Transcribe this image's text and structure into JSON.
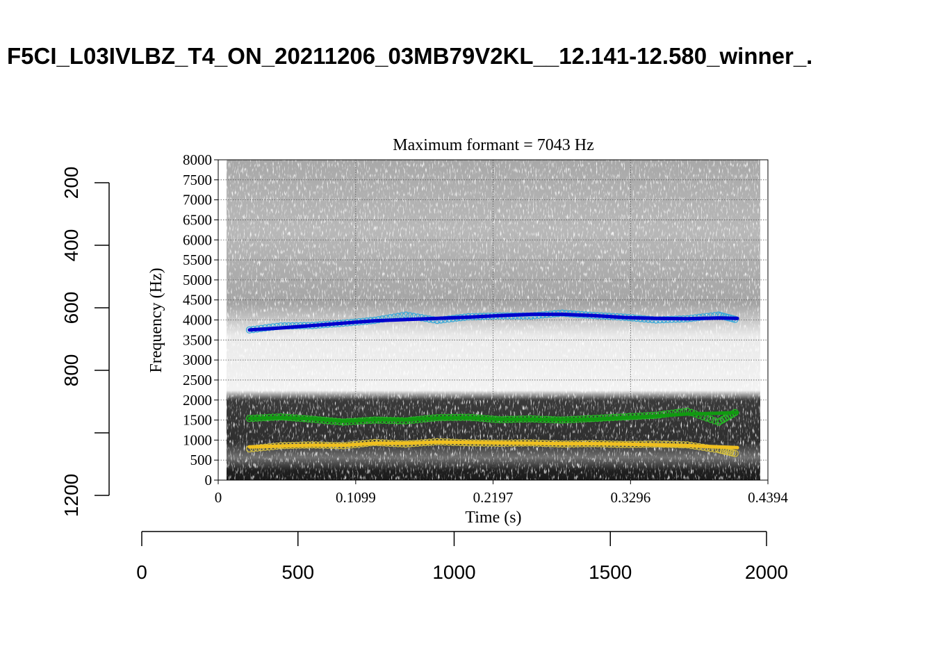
{
  "chart_data": {
    "type": "line",
    "title": "F5CI_L03IVLBZ_T4_ON_20211206_03MB79V2KL__12.141-12.580_winner_.",
    "outer_axes": {
      "x_ticks": [
        0,
        500,
        1000,
        1500,
        2000
      ],
      "x_range": [
        0,
        2000
      ],
      "y_ticks": [
        200,
        400,
        600,
        800,
        1000,
        1200
      ],
      "y_tick_labels": [
        "200",
        "400",
        "600",
        "800",
        "",
        "1200"
      ],
      "y_range": [
        160,
        1160
      ],
      "y_reversed": true
    },
    "inner_plot": {
      "title": "Maximum formant  =  7043 Hz",
      "xlabel": "Time (s)",
      "ylabel": "Frequency (Hz)",
      "xlim": [
        0,
        0.4394
      ],
      "ylim": [
        0,
        8000
      ],
      "x_ticks": [
        "0",
        "0.1099",
        "0.2197",
        "0.3296",
        "0.4394"
      ],
      "x_tick_values": [
        0,
        0.1099,
        0.2197,
        0.3296,
        0.4394
      ],
      "y_ticks": [
        0,
        500,
        1000,
        1500,
        2000,
        2500,
        3000,
        3500,
        4000,
        4500,
        5000,
        5500,
        6000,
        6500,
        7000,
        7500,
        8000
      ],
      "grid": true,
      "background": "grayscale spectrogram"
    },
    "series": [
      {
        "color": "#0000cc",
        "raw_color": "#38a8d8",
        "x": [
          0.025,
          0.05,
          0.075,
          0.1,
          0.125,
          0.15,
          0.175,
          0.2,
          0.225,
          0.25,
          0.275,
          0.3,
          0.325,
          0.35,
          0.375,
          0.4,
          0.415
        ],
        "y": [
          3750,
          3800,
          3860,
          3920,
          3980,
          4010,
          4040,
          4070,
          4110,
          4140,
          4140,
          4110,
          4060,
          4040,
          4030,
          4050,
          4040
        ],
        "raw_y": [
          3750,
          3850,
          3860,
          3920,
          3990,
          4120,
          3990,
          4080,
          4100,
          4100,
          4170,
          4110,
          4070,
          4000,
          4030,
          4120,
          4000
        ]
      },
      {
        "color": "#119911",
        "raw_color": "#22bb22",
        "x": [
          0.025,
          0.05,
          0.075,
          0.1,
          0.125,
          0.15,
          0.175,
          0.2,
          0.225,
          0.25,
          0.275,
          0.3,
          0.325,
          0.35,
          0.375,
          0.4,
          0.415
        ],
        "y": [
          1540,
          1560,
          1530,
          1470,
          1510,
          1510,
          1550,
          1560,
          1520,
          1520,
          1510,
          1520,
          1560,
          1600,
          1650,
          1670,
          1690
        ],
        "raw_y": [
          1540,
          1580,
          1520,
          1450,
          1500,
          1480,
          1560,
          1570,
          1510,
          1530,
          1500,
          1540,
          1580,
          1620,
          1720,
          1450,
          1720
        ]
      },
      {
        "color": "#f0c020",
        "raw_color": "#d4c040",
        "x": [
          0.025,
          0.05,
          0.075,
          0.1,
          0.125,
          0.15,
          0.175,
          0.2,
          0.225,
          0.25,
          0.275,
          0.3,
          0.325,
          0.35,
          0.375,
          0.4,
          0.415
        ],
        "y": [
          830,
          850,
          870,
          870,
          920,
          920,
          950,
          940,
          930,
          920,
          910,
          910,
          900,
          880,
          860,
          830,
          810
        ],
        "raw_y": [
          780,
          860,
          880,
          860,
          940,
          900,
          960,
          930,
          920,
          930,
          900,
          910,
          890,
          900,
          880,
          760,
          650
        ]
      }
    ]
  }
}
